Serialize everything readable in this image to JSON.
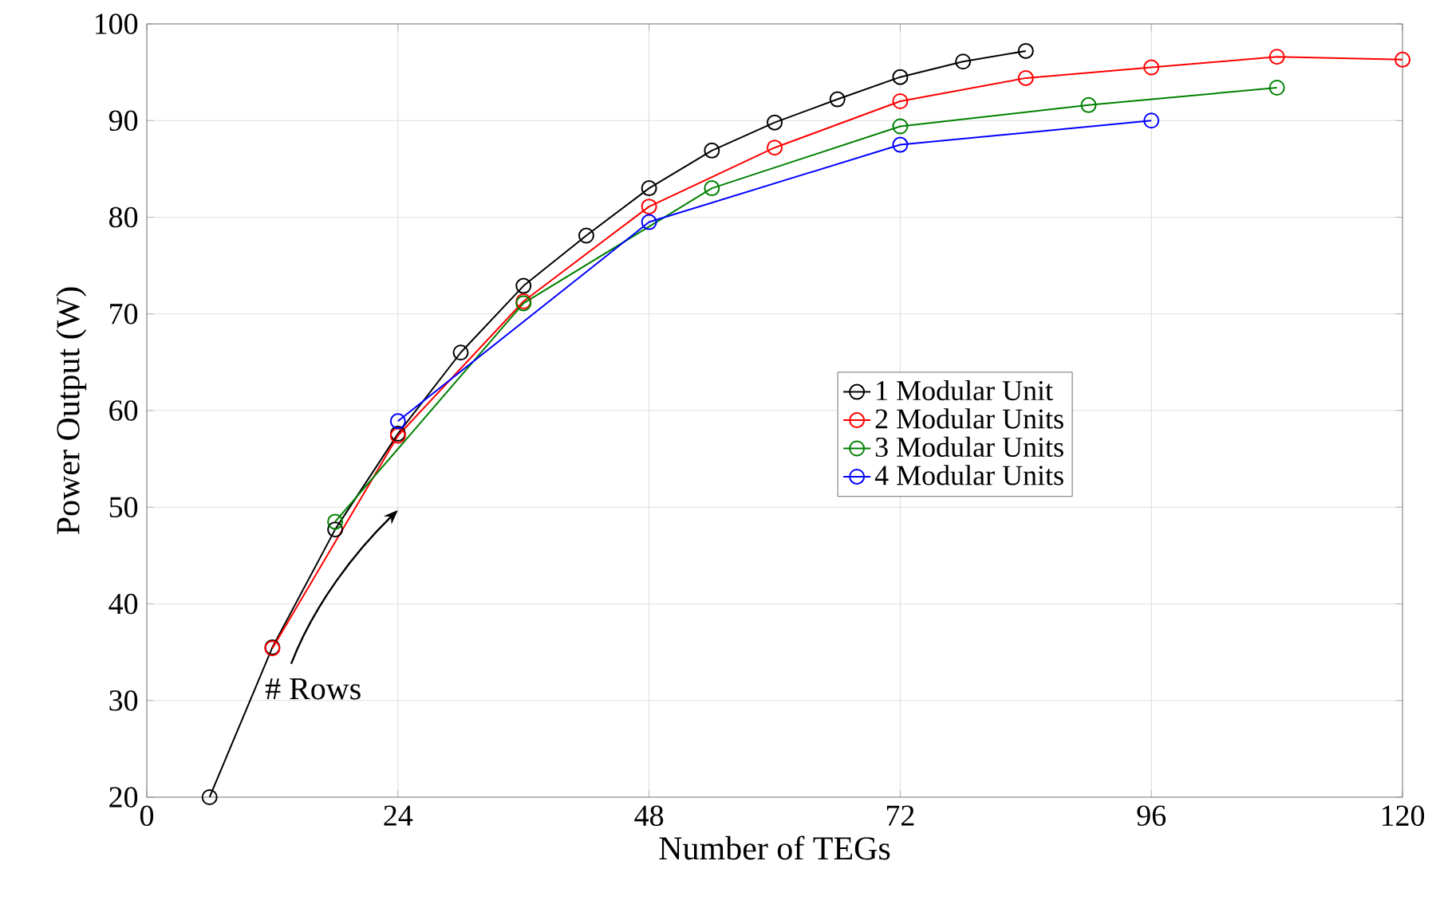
{
  "chart_data": {
    "type": "line",
    "xlabel": "Number of TEGs",
    "ylabel": "Power Output (W)",
    "xlim": [
      0,
      120
    ],
    "ylim": [
      20,
      100
    ],
    "xticks": [
      0,
      24,
      48,
      72,
      96,
      120
    ],
    "yticks": [
      20,
      30,
      40,
      50,
      60,
      70,
      80,
      90,
      100
    ],
    "grid": true,
    "legend": "right",
    "marker": "circle",
    "line_style": "solid",
    "annotations": [
      "# Rows"
    ],
    "series": [
      {
        "name": "1 Modular Unit",
        "color": "#000000",
        "x": [
          6,
          12,
          18,
          24,
          30,
          36,
          42,
          48,
          54,
          60,
          66,
          72,
          78,
          84
        ],
        "values": [
          20,
          35.5,
          47.7,
          57.6,
          66.0,
          72.9,
          78.1,
          83.0,
          86.9,
          89.8,
          92.2,
          94.5,
          96.1,
          97.2
        ]
      },
      {
        "name": "2 Modular Units",
        "color": "#ff0000",
        "x": [
          12,
          24,
          36,
          48,
          60,
          72,
          84,
          96,
          108,
          120
        ],
        "values": [
          35.4,
          57.4,
          71.3,
          81.1,
          87.2,
          92.0,
          94.4,
          95.5,
          96.6,
          96.3
        ]
      },
      {
        "name": "3 Modular Units",
        "color": "#008000",
        "x": [
          18,
          36,
          54,
          72,
          90,
          108
        ],
        "values": [
          48.5,
          71.1,
          83.0,
          89.4,
          91.6,
          93.4
        ]
      },
      {
        "name": "4 Modular Units",
        "color": "#0000ff",
        "x": [
          24,
          48,
          72,
          96
        ],
        "values": [
          58.9,
          79.5,
          87.5,
          90.0
        ]
      }
    ]
  }
}
